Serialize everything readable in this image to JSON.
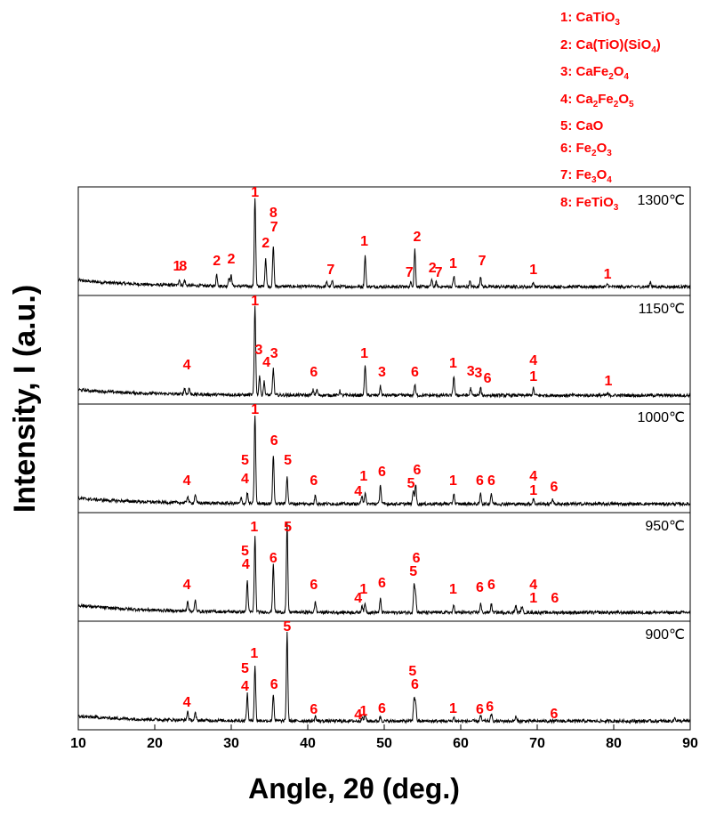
{
  "chart_data": {
    "type": "line",
    "xlabel": "Angle, 2θ (deg.)",
    "ylabel": "Intensity, I (a.u.)",
    "xlim": [
      10,
      90
    ],
    "xticks": [
      "10",
      "20",
      "30",
      "40",
      "50",
      "60",
      "70",
      "80",
      "90"
    ],
    "legend": [
      {
        "num": "1",
        "phase": "CaTiO3"
      },
      {
        "num": "2",
        "phase": "Ca(TiO)(SiO4)"
      },
      {
        "num": "3",
        "phase": "CaFe2O4"
      },
      {
        "num": "4",
        "phase": "Ca2Fe2O5"
      },
      {
        "num": "5",
        "phase": "CaO"
      },
      {
        "num": "6",
        "phase": "Fe2O3"
      },
      {
        "num": "7",
        "phase": "Fe3O4"
      },
      {
        "num": "8",
        "phase": "FeTiO3"
      }
    ],
    "panels": [
      {
        "temp": "1300℃",
        "baseline": 0.08,
        "peaks": [
          [
            33.1,
            1.0
          ],
          [
            34.5,
            0.32
          ],
          [
            35.5,
            0.45
          ],
          [
            47.5,
            0.35
          ],
          [
            54.0,
            0.42
          ],
          [
            59.1,
            0.12
          ],
          [
            62.6,
            0.12
          ],
          [
            28.1,
            0.13
          ],
          [
            29.7,
            0.1
          ],
          [
            30.0,
            0.12
          ],
          [
            23.2,
            0.07
          ],
          [
            23.9,
            0.06
          ],
          [
            42.5,
            0.05
          ],
          [
            43.2,
            0.06
          ],
          [
            53.5,
            0.05
          ],
          [
            56.2,
            0.08
          ],
          [
            56.8,
            0.05
          ],
          [
            61.2,
            0.06
          ],
          [
            69.5,
            0.05
          ],
          [
            79.2,
            0.03
          ],
          [
            84.8,
            0.06
          ]
        ],
        "labels": [
          {
            "t": "1",
            "x": 33.1,
            "y": 1.05
          },
          {
            "t": "8",
            "x": 35.5,
            "y": 0.82
          },
          {
            "t": "7",
            "x": 35.6,
            "y": 0.66
          },
          {
            "t": "2",
            "x": 34.5,
            "y": 0.48
          },
          {
            "t": "1",
            "x": 47.4,
            "y": 0.5
          },
          {
            "t": "2",
            "x": 54.3,
            "y": 0.55
          },
          {
            "t": "7",
            "x": 62.8,
            "y": 0.28
          },
          {
            "t": "1",
            "x": 59.0,
            "y": 0.25
          },
          {
            "t": "2",
            "x": 28.1,
            "y": 0.28
          },
          {
            "t": "2",
            "x": 30.0,
            "y": 0.3
          },
          {
            "t": "1",
            "x": 22.9,
            "y": 0.22
          },
          {
            "t": "8",
            "x": 23.7,
            "y": 0.22
          },
          {
            "t": "7",
            "x": 43.0,
            "y": 0.18
          },
          {
            "t": "7",
            "x": 53.3,
            "y": 0.15
          },
          {
            "t": "2",
            "x": 56.3,
            "y": 0.2
          },
          {
            "t": "7",
            "x": 57.1,
            "y": 0.15
          },
          {
            "t": "1",
            "x": 69.5,
            "y": 0.18
          },
          {
            "t": "1",
            "x": 79.2,
            "y": 0.13
          }
        ]
      },
      {
        "temp": "1150℃",
        "baseline": 0.07,
        "peaks": [
          [
            33.1,
            1.0
          ],
          [
            33.7,
            0.22
          ],
          [
            34.3,
            0.15
          ],
          [
            35.5,
            0.3
          ],
          [
            47.5,
            0.35
          ],
          [
            49.5,
            0.1
          ],
          [
            54.0,
            0.12
          ],
          [
            59.1,
            0.22
          ],
          [
            61.3,
            0.08
          ],
          [
            62.6,
            0.08
          ],
          [
            23.9,
            0.07
          ],
          [
            24.5,
            0.07
          ],
          [
            40.7,
            0.06
          ],
          [
            41.2,
            0.06
          ],
          [
            44.2,
            0.05
          ],
          [
            69.5,
            0.08
          ],
          [
            79.2,
            0.02
          ]
        ],
        "labels": [
          {
            "t": "1",
            "x": 33.1,
            "y": 1.05
          },
          {
            "t": "3",
            "x": 33.6,
            "y": 0.5
          },
          {
            "t": "4",
            "x": 34.6,
            "y": 0.36
          },
          {
            "t": "3",
            "x": 35.6,
            "y": 0.46
          },
          {
            "t": "4",
            "x": 24.2,
            "y": 0.33
          },
          {
            "t": "6",
            "x": 40.8,
            "y": 0.25
          },
          {
            "t": "1",
            "x": 47.4,
            "y": 0.46
          },
          {
            "t": "3",
            "x": 49.7,
            "y": 0.25
          },
          {
            "t": "6",
            "x": 54.0,
            "y": 0.25
          },
          {
            "t": "1",
            "x": 59.0,
            "y": 0.35
          },
          {
            "t": "3",
            "x": 61.3,
            "y": 0.26
          },
          {
            "t": "3",
            "x": 62.3,
            "y": 0.24
          },
          {
            "t": "6",
            "x": 63.5,
            "y": 0.18
          },
          {
            "t": "4",
            "x": 69.5,
            "y": 0.38
          },
          {
            "t": "1",
            "x": 69.5,
            "y": 0.2
          },
          {
            "t": "1",
            "x": 79.3,
            "y": 0.15
          }
        ]
      },
      {
        "temp": "1000℃",
        "baseline": 0.07,
        "peaks": [
          [
            33.1,
            1.0
          ],
          [
            32.1,
            0.12
          ],
          [
            35.5,
            0.55
          ],
          [
            37.3,
            0.32
          ],
          [
            41.0,
            0.1
          ],
          [
            47.1,
            0.1
          ],
          [
            47.5,
            0.12
          ],
          [
            49.5,
            0.22
          ],
          [
            54.1,
            0.22
          ],
          [
            53.8,
            0.15
          ],
          [
            59.1,
            0.12
          ],
          [
            62.6,
            0.12
          ],
          [
            64.0,
            0.12
          ],
          [
            24.3,
            0.08
          ],
          [
            25.3,
            0.1
          ],
          [
            31.3,
            0.06
          ],
          [
            69.5,
            0.06
          ],
          [
            72.0,
            0.06
          ]
        ],
        "labels": [
          {
            "t": "1",
            "x": 33.1,
            "y": 1.05
          },
          {
            "t": "6",
            "x": 35.6,
            "y": 0.7
          },
          {
            "t": "5",
            "x": 37.4,
            "y": 0.48
          },
          {
            "t": "5",
            "x": 31.8,
            "y": 0.48
          },
          {
            "t": "4",
            "x": 31.8,
            "y": 0.27
          },
          {
            "t": "4",
            "x": 24.2,
            "y": 0.25
          },
          {
            "t": "6",
            "x": 40.8,
            "y": 0.25
          },
          {
            "t": "4",
            "x": 46.6,
            "y": 0.13
          },
          {
            "t": "1",
            "x": 47.3,
            "y": 0.3
          },
          {
            "t": "6",
            "x": 49.7,
            "y": 0.35
          },
          {
            "t": "6",
            "x": 54.3,
            "y": 0.37
          },
          {
            "t": "5",
            "x": 53.5,
            "y": 0.22
          },
          {
            "t": "1",
            "x": 59.0,
            "y": 0.25
          },
          {
            "t": "6",
            "x": 62.5,
            "y": 0.25
          },
          {
            "t": "6",
            "x": 64.0,
            "y": 0.25
          },
          {
            "t": "4",
            "x": 69.5,
            "y": 0.3
          },
          {
            "t": "1",
            "x": 69.5,
            "y": 0.14
          },
          {
            "t": "6",
            "x": 72.2,
            "y": 0.18
          }
        ]
      },
      {
        "temp": "950℃",
        "baseline": 0.09,
        "peaks": [
          [
            33.1,
            0.85
          ],
          [
            32.1,
            0.35
          ],
          [
            35.5,
            0.55
          ],
          [
            37.3,
            1.0
          ],
          [
            41.0,
            0.12
          ],
          [
            47.1,
            0.08
          ],
          [
            47.5,
            0.1
          ],
          [
            49.5,
            0.15
          ],
          [
            53.9,
            0.3
          ],
          [
            54.1,
            0.2
          ],
          [
            59.1,
            0.08
          ],
          [
            62.6,
            0.1
          ],
          [
            64.0,
            0.1
          ],
          [
            24.3,
            0.12
          ],
          [
            25.3,
            0.12
          ],
          [
            67.2,
            0.08
          ],
          [
            68.0,
            0.07
          ]
        ],
        "labels": [
          {
            "t": "1",
            "x": 33.0,
            "y": 0.95
          },
          {
            "t": "5",
            "x": 37.4,
            "y": 0.95
          },
          {
            "t": "5",
            "x": 31.8,
            "y": 0.68
          },
          {
            "t": "4",
            "x": 31.9,
            "y": 0.53
          },
          {
            "t": "6",
            "x": 35.5,
            "y": 0.6
          },
          {
            "t": "4",
            "x": 24.2,
            "y": 0.3
          },
          {
            "t": "6",
            "x": 40.8,
            "y": 0.3
          },
          {
            "t": "4",
            "x": 46.6,
            "y": 0.15
          },
          {
            "t": "1",
            "x": 47.3,
            "y": 0.25
          },
          {
            "t": "6",
            "x": 49.7,
            "y": 0.32
          },
          {
            "t": "6",
            "x": 54.2,
            "y": 0.6
          },
          {
            "t": "5",
            "x": 53.8,
            "y": 0.45
          },
          {
            "t": "1",
            "x": 59.0,
            "y": 0.25
          },
          {
            "t": "6",
            "x": 62.5,
            "y": 0.27
          },
          {
            "t": "6",
            "x": 64.0,
            "y": 0.3
          },
          {
            "t": "4",
            "x": 69.5,
            "y": 0.3
          },
          {
            "t": "1",
            "x": 69.5,
            "y": 0.15
          },
          {
            "t": "6",
            "x": 72.3,
            "y": 0.15
          }
        ]
      },
      {
        "temp": "900℃",
        "baseline": 0.06,
        "peaks": [
          [
            33.1,
            0.62
          ],
          [
            32.1,
            0.3
          ],
          [
            35.5,
            0.3
          ],
          [
            37.3,
            1.0
          ],
          [
            41.0,
            0.05
          ],
          [
            47.1,
            0.05
          ],
          [
            47.5,
            0.07
          ],
          [
            49.5,
            0.05
          ],
          [
            53.9,
            0.25
          ],
          [
            54.1,
            0.2
          ],
          [
            59.1,
            0.04
          ],
          [
            62.6,
            0.06
          ],
          [
            64.0,
            0.08
          ],
          [
            24.3,
            0.1
          ],
          [
            25.3,
            0.08
          ],
          [
            67.2,
            0.05
          ],
          [
            88.0,
            0.04
          ]
        ],
        "labels": [
          {
            "t": "5",
            "x": 37.3,
            "y": 1.05
          },
          {
            "t": "1",
            "x": 33.0,
            "y": 0.75
          },
          {
            "t": "5",
            "x": 31.8,
            "y": 0.58
          },
          {
            "t": "4",
            "x": 31.8,
            "y": 0.38
          },
          {
            "t": "6",
            "x": 35.6,
            "y": 0.4
          },
          {
            "t": "4",
            "x": 24.2,
            "y": 0.2
          },
          {
            "t": "6",
            "x": 40.8,
            "y": 0.12
          },
          {
            "t": "4",
            "x": 46.6,
            "y": 0.06
          },
          {
            "t": "1",
            "x": 47.3,
            "y": 0.1
          },
          {
            "t": "6",
            "x": 49.7,
            "y": 0.13
          },
          {
            "t": "5",
            "x": 53.7,
            "y": 0.55
          },
          {
            "t": "6",
            "x": 54.0,
            "y": 0.4
          },
          {
            "t": "1",
            "x": 59.0,
            "y": 0.13
          },
          {
            "t": "6",
            "x": 62.5,
            "y": 0.12
          },
          {
            "t": "6",
            "x": 63.8,
            "y": 0.15
          },
          {
            "t": "6",
            "x": 72.2,
            "y": 0.07
          }
        ]
      }
    ]
  }
}
